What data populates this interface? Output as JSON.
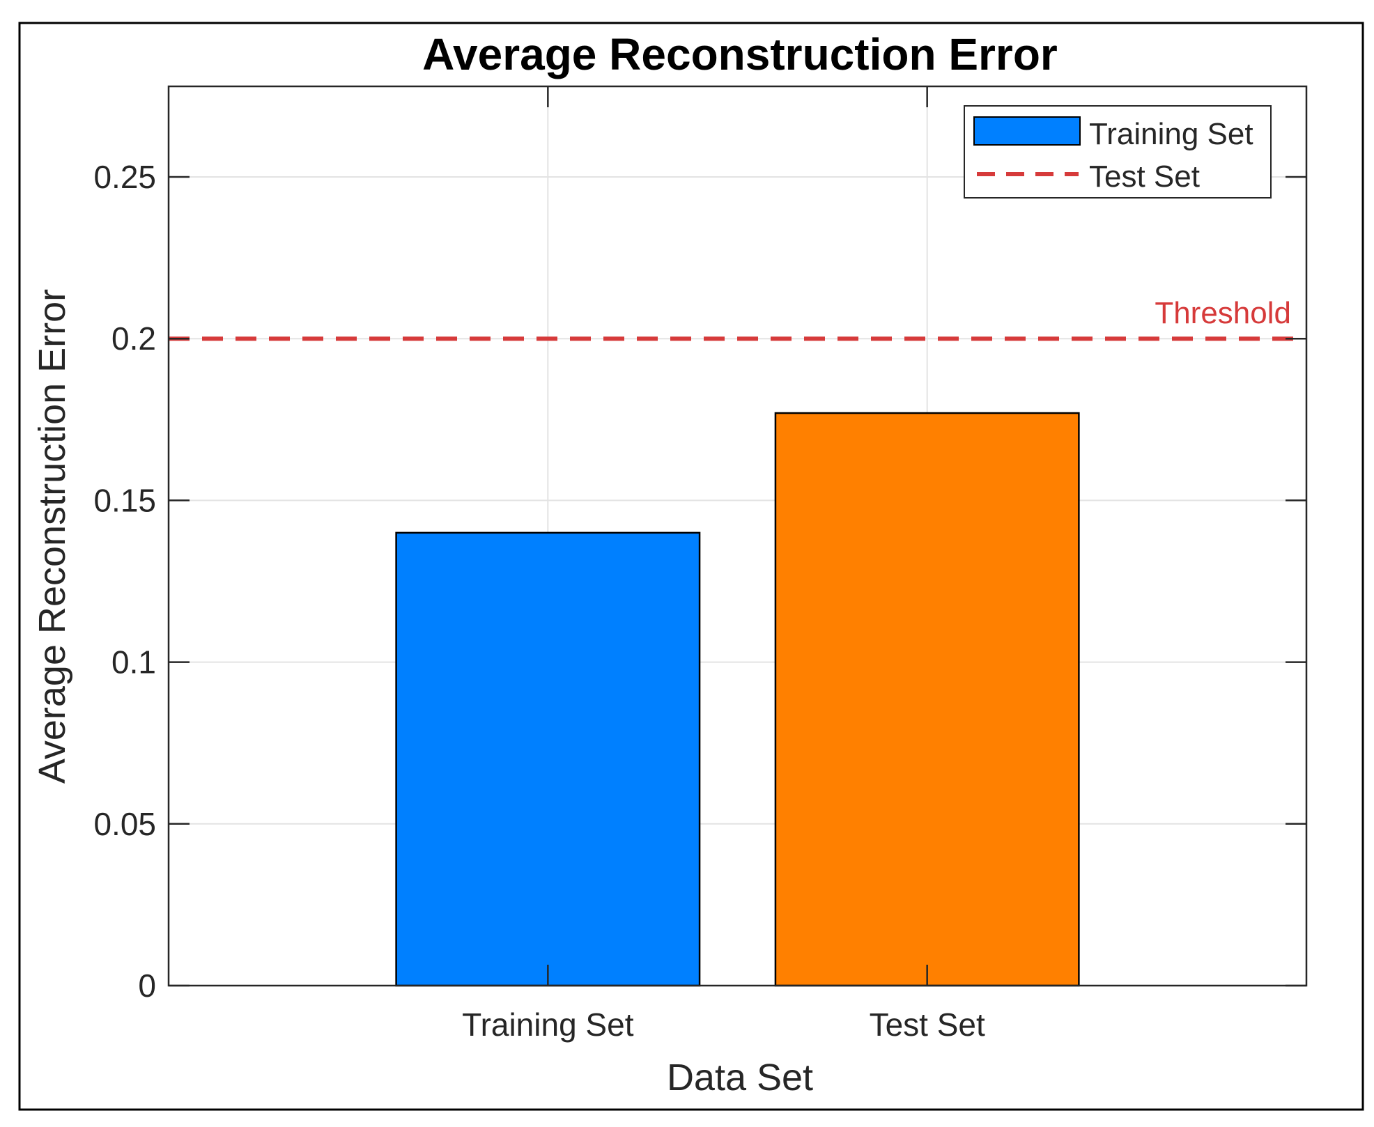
{
  "chart_data": {
    "type": "bar",
    "title": "Average Reconstruction Error",
    "xlabel": "Data Set",
    "ylabel": "Average Reconstruction Error",
    "categories": [
      "Training Set",
      "Test Set"
    ],
    "values": [
      0.14,
      0.177
    ],
    "bar_colors": [
      "#0080ff",
      "#ff8000"
    ],
    "ylim": [
      0,
      0.278
    ],
    "yticks": [
      0,
      0.05,
      0.1,
      0.15,
      0.2,
      0.25
    ],
    "ytick_labels": [
      "0",
      "0.05",
      "0.1",
      "0.15",
      "0.2",
      "0.25"
    ],
    "grid": true,
    "threshold": {
      "value": 0.2,
      "label": "Threshold",
      "color": "#d63a3a",
      "style": "dashed"
    },
    "legend": {
      "placement": "top-right",
      "entries": [
        {
          "label": "Training Set",
          "kind": "bar",
          "color": "#0080ff"
        },
        {
          "label": "Test Set",
          "kind": "dashed-line",
          "color": "#d63a3a"
        }
      ]
    }
  }
}
